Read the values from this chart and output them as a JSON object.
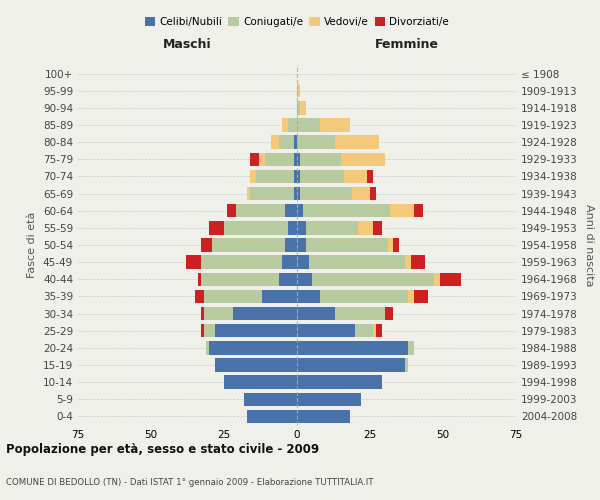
{
  "age_groups": [
    "0-4",
    "5-9",
    "10-14",
    "15-19",
    "20-24",
    "25-29",
    "30-34",
    "35-39",
    "40-44",
    "45-49",
    "50-54",
    "55-59",
    "60-64",
    "65-69",
    "70-74",
    "75-79",
    "80-84",
    "85-89",
    "90-94",
    "95-99",
    "100+"
  ],
  "birth_years": [
    "2004-2008",
    "1999-2003",
    "1994-1998",
    "1989-1993",
    "1984-1988",
    "1979-1983",
    "1974-1978",
    "1969-1973",
    "1964-1968",
    "1959-1963",
    "1954-1958",
    "1949-1953",
    "1944-1948",
    "1939-1943",
    "1934-1938",
    "1929-1933",
    "1924-1928",
    "1919-1923",
    "1914-1918",
    "1909-1913",
    "≤ 1908"
  ],
  "male": {
    "celibi": [
      17,
      18,
      25,
      28,
      30,
      28,
      22,
      12,
      6,
      5,
      4,
      3,
      4,
      1,
      1,
      1,
      1,
      0,
      0,
      0,
      0
    ],
    "coniugati": [
      0,
      0,
      0,
      0,
      1,
      4,
      10,
      20,
      27,
      28,
      25,
      22,
      17,
      15,
      13,
      10,
      5,
      3,
      0,
      0,
      0
    ],
    "vedovi": [
      0,
      0,
      0,
      0,
      0,
      0,
      0,
      0,
      0,
      0,
      0,
      0,
      0,
      1,
      2,
      2,
      3,
      2,
      0,
      0,
      0
    ],
    "divorziati": [
      0,
      0,
      0,
      0,
      0,
      1,
      1,
      3,
      1,
      5,
      4,
      5,
      3,
      0,
      0,
      3,
      0,
      0,
      0,
      0,
      0
    ]
  },
  "female": {
    "nubili": [
      18,
      22,
      29,
      37,
      38,
      20,
      13,
      8,
      5,
      4,
      3,
      3,
      2,
      1,
      1,
      1,
      0,
      0,
      0,
      0,
      0
    ],
    "coniugate": [
      0,
      0,
      0,
      1,
      2,
      6,
      17,
      30,
      42,
      33,
      28,
      18,
      30,
      18,
      15,
      14,
      13,
      8,
      1,
      0,
      0
    ],
    "vedove": [
      0,
      0,
      0,
      0,
      0,
      1,
      0,
      2,
      2,
      2,
      2,
      5,
      8,
      6,
      8,
      15,
      15,
      10,
      2,
      1,
      0
    ],
    "divorziate": [
      0,
      0,
      0,
      0,
      0,
      2,
      3,
      5,
      7,
      5,
      2,
      3,
      3,
      2,
      2,
      0,
      0,
      0,
      0,
      0,
      0
    ]
  },
  "colors": {
    "celibi": "#4a72aa",
    "coniugati": "#b8cba0",
    "vedovi": "#f5c97a",
    "divorziati": "#cc2222"
  },
  "xlim": 75,
  "title": "Popolazione per età, sesso e stato civile - 2009",
  "subtitle": "COMUNE DI BEDOLLO (TN) - Dati ISTAT 1° gennaio 2009 - Elaborazione TUTTITALIA.IT",
  "ylabel_left": "Fasce di età",
  "ylabel_right": "Anni di nascita",
  "xlabel_left": "Maschi",
  "xlabel_right": "Femmine",
  "bg_color": "#f0f0eb"
}
